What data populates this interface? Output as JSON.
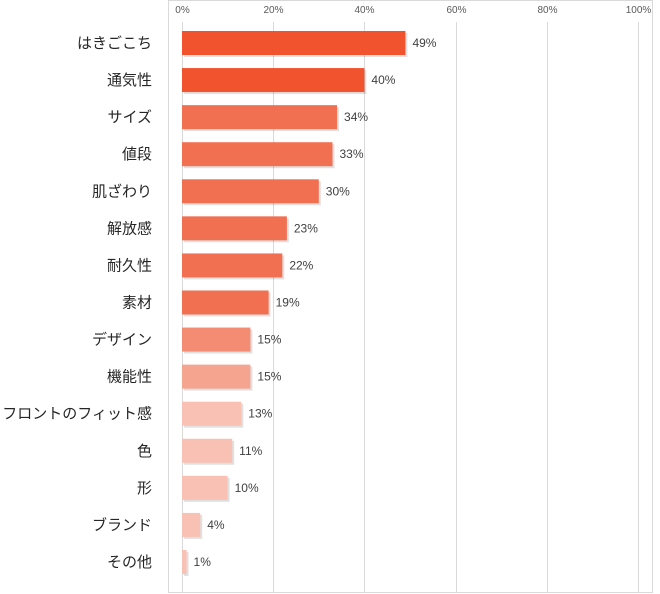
{
  "chart_data": {
    "type": "bar",
    "orientation": "horizontal",
    "categories": [
      "はきごこち",
      "通気性",
      "サイズ",
      "値段",
      "肌ざわり",
      "解放感",
      "耐久性",
      "素材",
      "デザイン",
      "機能性",
      "フロントのフィット感",
      "色",
      "形",
      "ブランド",
      "その他"
    ],
    "values": [
      49,
      40,
      34,
      33,
      30,
      23,
      22,
      19,
      15,
      15,
      13,
      11,
      10,
      4,
      1
    ],
    "value_labels": [
      "49%",
      "40%",
      "34%",
      "33%",
      "30%",
      "23%",
      "22%",
      "19%",
      "15%",
      "15%",
      "13%",
      "11%",
      "10%",
      "4%",
      "1%"
    ],
    "bar_colors": [
      "#f0532e",
      "#f0532e",
      "#f27052",
      "#f27052",
      "#f27052",
      "#f27052",
      "#f27052",
      "#f27052",
      "#f38c73",
      "#f5a490",
      "#f8c1b3",
      "#f8c1b3",
      "#f8c1b3",
      "#f8c1b3",
      "#f8c1b3"
    ],
    "xaxis_position": "top",
    "xlim": [
      0,
      100
    ],
    "xticks": [
      0,
      20,
      40,
      60,
      80,
      100
    ],
    "xtick_labels": [
      "0%",
      "20%",
      "40%",
      "60%",
      "80%",
      "100%"
    ],
    "grid": true,
    "legend": "none",
    "title": "",
    "xlabel": "",
    "ylabel": ""
  }
}
